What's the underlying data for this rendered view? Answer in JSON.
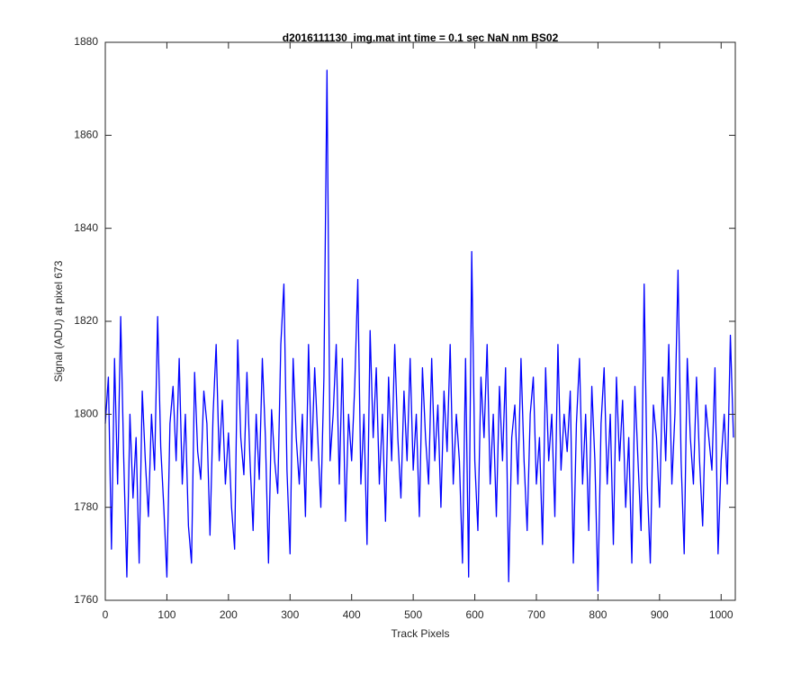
{
  "chart_data": {
    "type": "line",
    "title": "d2016111130_img.mat int time = 0.1 sec  NaN nm BS02",
    "xlabel": "Track Pixels",
    "ylabel": "Signal (ADU) at pixel 673",
    "xlim": [
      0,
      1023
    ],
    "ylim": [
      1760,
      1880
    ],
    "xticks": [
      0,
      100,
      200,
      300,
      400,
      500,
      600,
      700,
      800,
      900,
      1000
    ],
    "yticks": [
      1760,
      1780,
      1800,
      1820,
      1840,
      1860,
      1880
    ],
    "grid": false,
    "x": [
      0,
      5,
      10,
      15,
      20,
      25,
      30,
      35,
      40,
      45,
      50,
      55,
      60,
      65,
      70,
      75,
      80,
      85,
      90,
      95,
      100,
      105,
      110,
      115,
      120,
      125,
      130,
      135,
      140,
      145,
      150,
      155,
      160,
      165,
      170,
      175,
      180,
      185,
      190,
      195,
      200,
      205,
      210,
      215,
      220,
      225,
      230,
      235,
      240,
      245,
      250,
      255,
      260,
      265,
      270,
      275,
      280,
      285,
      290,
      295,
      300,
      305,
      310,
      315,
      320,
      325,
      330,
      335,
      340,
      345,
      350,
      355,
      360,
      365,
      370,
      375,
      380,
      385,
      390,
      395,
      400,
      405,
      410,
      415,
      420,
      425,
      430,
      435,
      440,
      445,
      450,
      455,
      460,
      465,
      470,
      475,
      480,
      485,
      490,
      495,
      500,
      505,
      510,
      515,
      520,
      525,
      530,
      535,
      540,
      545,
      550,
      555,
      560,
      565,
      570,
      575,
      580,
      585,
      590,
      595,
      600,
      605,
      610,
      615,
      620,
      625,
      630,
      635,
      640,
      645,
      650,
      655,
      660,
      665,
      670,
      675,
      680,
      685,
      690,
      695,
      700,
      705,
      710,
      715,
      720,
      725,
      730,
      735,
      740,
      745,
      750,
      755,
      760,
      765,
      770,
      775,
      780,
      785,
      790,
      795,
      800,
      805,
      810,
      815,
      820,
      825,
      830,
      835,
      840,
      845,
      850,
      855,
      860,
      865,
      870,
      875,
      880,
      885,
      890,
      895,
      900,
      905,
      910,
      915,
      920,
      925,
      930,
      935,
      940,
      945,
      950,
      955,
      960,
      965,
      970,
      975,
      980,
      985,
      990,
      995,
      1000,
      1005,
      1010,
      1015,
      1020
    ],
    "series": [
      {
        "name": "signal",
        "color": "#0000ff",
        "values": [
          1798,
          1808,
          1771,
          1812,
          1785,
          1821,
          1790,
          1765,
          1800,
          1782,
          1795,
          1768,
          1805,
          1790,
          1778,
          1800,
          1788,
          1821,
          1793,
          1780,
          1765,
          1798,
          1806,
          1790,
          1812,
          1785,
          1800,
          1776,
          1768,
          1809,
          1792,
          1786,
          1805,
          1798,
          1774,
          1800,
          1815,
          1790,
          1803,
          1785,
          1796,
          1780,
          1771,
          1816,
          1795,
          1787,
          1809,
          1790,
          1775,
          1800,
          1786,
          1812,
          1795,
          1768,
          1801,
          1790,
          1783,
          1815,
          1828,
          1788,
          1770,
          1812,
          1795,
          1785,
          1800,
          1778,
          1815,
          1790,
          1810,
          1795,
          1780,
          1808,
          1874,
          1790,
          1800,
          1815,
          1785,
          1812,
          1777,
          1800,
          1790,
          1806,
          1829,
          1785,
          1800,
          1772,
          1818,
          1795,
          1810,
          1785,
          1800,
          1777,
          1808,
          1790,
          1815,
          1795,
          1782,
          1805,
          1790,
          1812,
          1788,
          1800,
          1778,
          1810,
          1795,
          1785,
          1812,
          1790,
          1802,
          1780,
          1805,
          1792,
          1815,
          1785,
          1800,
          1790,
          1768,
          1812,
          1765,
          1835,
          1790,
          1775,
          1808,
          1795,
          1815,
          1785,
          1800,
          1778,
          1806,
          1790,
          1810,
          1764,
          1795,
          1802,
          1785,
          1812,
          1790,
          1775,
          1800,
          1808,
          1785,
          1795,
          1772,
          1810,
          1790,
          1800,
          1778,
          1815,
          1788,
          1800,
          1792,
          1805,
          1768,
          1798,
          1812,
          1785,
          1800,
          1775,
          1806,
          1790,
          1762,
          1798,
          1810,
          1785,
          1800,
          1772,
          1808,
          1790,
          1803,
          1780,
          1795,
          1768,
          1806,
          1790,
          1775,
          1828,
          1785,
          1768,
          1802,
          1795,
          1780,
          1808,
          1790,
          1815,
          1785,
          1800,
          1831,
          1790,
          1770,
          1812,
          1795,
          1785,
          1808,
          1790,
          1776,
          1802,
          1795,
          1788,
          1810,
          1770,
          1790,
          1800,
          1785,
          1817,
          1795
        ]
      }
    ]
  }
}
